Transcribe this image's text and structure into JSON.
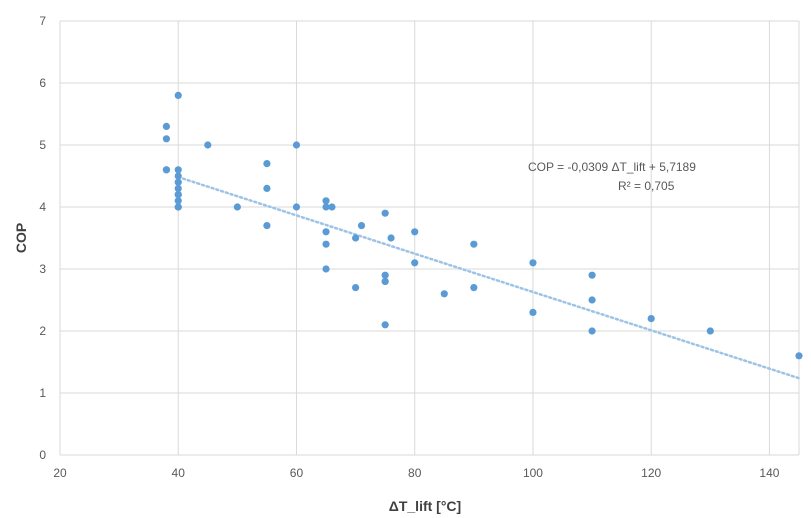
{
  "chart_data": {
    "type": "scatter",
    "title": "",
    "xlabel": "ΔT_lift [°C]",
    "ylabel": "COP",
    "xlim": [
      20,
      145
    ],
    "ylim": [
      0,
      7
    ],
    "xticks": [
      20,
      40,
      60,
      80,
      100,
      120,
      140
    ],
    "yticks": [
      0,
      1,
      2,
      3,
      4,
      5,
      6,
      7
    ],
    "grid": true,
    "legend": "none",
    "colors": {
      "points": "#5b9bd5",
      "trendline": "#9dc3e6",
      "grid": "#d9d9d9"
    },
    "x": [
      38,
      38,
      38,
      38,
      40,
      40,
      40,
      40,
      40,
      40,
      40,
      40,
      40,
      40,
      45,
      50,
      55,
      55,
      55,
      60,
      60,
      65,
      65,
      65,
      65,
      65,
      66,
      70,
      70,
      71,
      75,
      75,
      75,
      75,
      75,
      76,
      80,
      80,
      85,
      90,
      90,
      100,
      100,
      110,
      110,
      110,
      120,
      130,
      145
    ],
    "y": [
      5.3,
      5.1,
      4.6,
      4.6,
      5.8,
      4.6,
      4.5,
      4.3,
      4.2,
      4.1,
      4.0,
      4.0,
      4.4,
      4.2,
      5.0,
      4.0,
      4.7,
      4.3,
      3.7,
      5.0,
      4.0,
      4.1,
      4.0,
      3.6,
      3.4,
      3.0,
      4.0,
      3.5,
      2.7,
      3.7,
      3.9,
      2.9,
      2.8,
      2.8,
      2.1,
      3.5,
      3.6,
      3.1,
      2.6,
      3.4,
      2.7,
      3.1,
      2.3,
      2.9,
      2.5,
      2.0,
      2.2,
      2.0,
      1.6
    ],
    "trendline": {
      "type": "linear",
      "slope": -0.0309,
      "intercept": 5.7189,
      "x_range": [
        40,
        145
      ],
      "style": "dotted"
    },
    "annotations": [
      "COP = -0,0309 ΔT_lift  + 5,7189",
      "R² = 0,705"
    ]
  }
}
